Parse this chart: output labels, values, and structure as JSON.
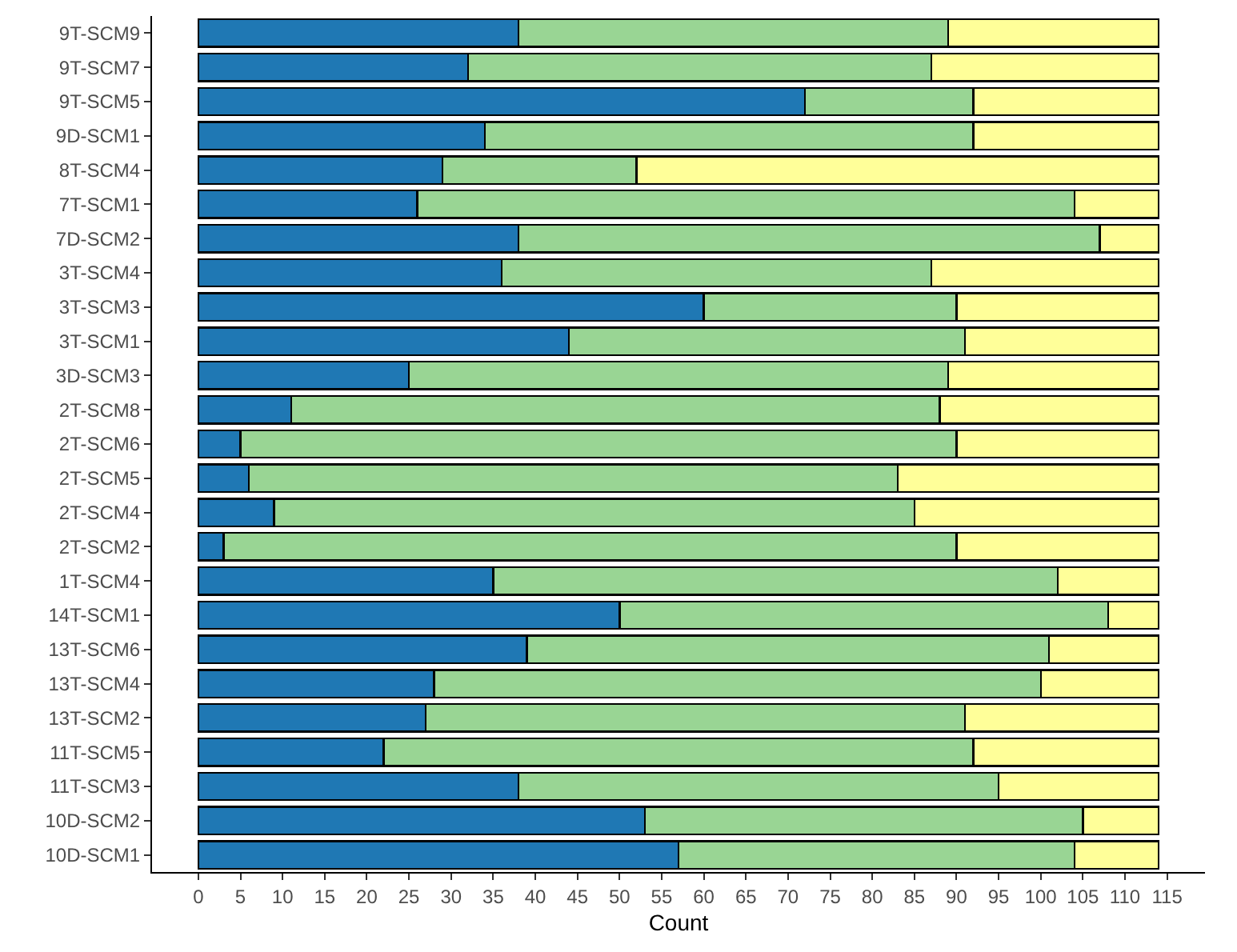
{
  "chart_data": {
    "type": "bar",
    "orientation": "horizontal",
    "stacked": true,
    "xlabel": "Count",
    "categories": [
      "9T-SCM9",
      "9T-SCM7",
      "9T-SCM5",
      "9D-SCM1",
      "8T-SCM4",
      "7T-SCM1",
      "7D-SCM2",
      "3T-SCM4",
      "3T-SCM3",
      "3T-SCM1",
      "3D-SCM3",
      "2T-SCM8",
      "2T-SCM6",
      "2T-SCM5",
      "2T-SCM4",
      "2T-SCM2",
      "1T-SCM4",
      "14T-SCM1",
      "13T-SCM6",
      "13T-SCM4",
      "13T-SCM2",
      "11T-SCM5",
      "11T-SCM3",
      "10D-SCM2",
      "10D-SCM1"
    ],
    "series": [
      {
        "color": "#1f78b4",
        "values": [
          38,
          32,
          72,
          34,
          29,
          26,
          38,
          36,
          60,
          44,
          25,
          11,
          5,
          6,
          9,
          3,
          35,
          50,
          39,
          28,
          27,
          22,
          38,
          53,
          57
        ]
      },
      {
        "color": "#99d594",
        "values": [
          51,
          55,
          20,
          58,
          23,
          78,
          69,
          51,
          30,
          47,
          64,
          77,
          85,
          77,
          76,
          87,
          67,
          58,
          62,
          72,
          64,
          70,
          57,
          52,
          47
        ]
      },
      {
        "color": "#ffff99",
        "values": [
          25,
          27,
          22,
          22,
          62,
          10,
          7,
          27,
          24,
          23,
          25,
          26,
          24,
          31,
          29,
          24,
          12,
          6,
          13,
          14,
          23,
          22,
          19,
          9,
          10
        ]
      }
    ],
    "xlim": [
      -5.5,
      119.5
    ],
    "xticks": [
      0,
      5,
      10,
      15,
      20,
      25,
      30,
      35,
      40,
      45,
      50,
      55,
      60,
      65,
      70,
      75,
      80,
      85,
      90,
      95,
      100,
      105,
      110,
      115
    ],
    "data_labels": false
  }
}
